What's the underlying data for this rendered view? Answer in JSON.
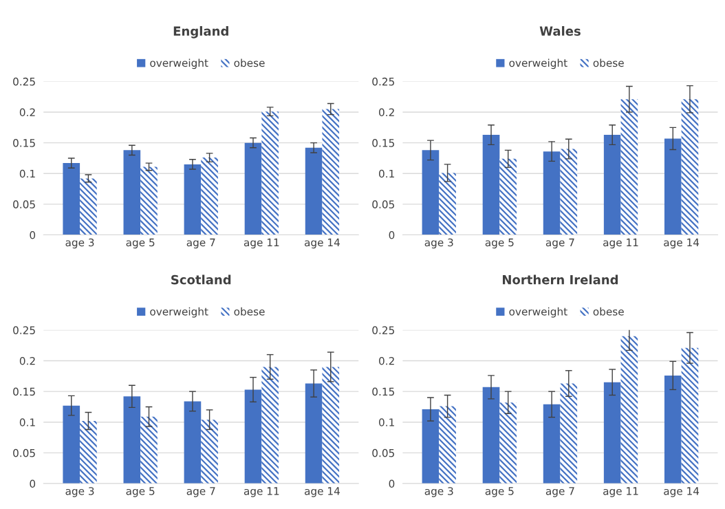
{
  "chart_data": [
    {
      "type": "bar",
      "title": "England",
      "categories": [
        "age 3",
        "age 5",
        "age 7",
        "age 11",
        "age 14"
      ],
      "ylim": [
        0,
        0.25
      ],
      "yticks": [
        0,
        0.05,
        0.1,
        0.15,
        0.2,
        0.25
      ],
      "grid": "y",
      "legend": "top",
      "series": [
        {
          "name": "overweight",
          "color": "#4472c4",
          "values": [
            0.117,
            0.138,
            0.115,
            0.15,
            0.142
          ],
          "errors": [
            0.008,
            0.008,
            0.008,
            0.008,
            0.008
          ]
        },
        {
          "name": "obese",
          "color": "#4472c4",
          "values": [
            0.092,
            0.111,
            0.126,
            0.201,
            0.205
          ],
          "errors": [
            0.006,
            0.006,
            0.007,
            0.007,
            0.009
          ]
        }
      ]
    },
    {
      "type": "bar",
      "title": "Wales",
      "categories": [
        "age 3",
        "age 5",
        "age 7",
        "age 11",
        "age 14"
      ],
      "ylim": [
        0,
        0.25
      ],
      "yticks": [
        0,
        0.05,
        0.1,
        0.15,
        0.2,
        0.25
      ],
      "grid": "y",
      "legend": "top",
      "series": [
        {
          "name": "overweight",
          "color": "#4472c4",
          "values": [
            0.138,
            0.163,
            0.136,
            0.163,
            0.157
          ],
          "errors": [
            0.016,
            0.016,
            0.016,
            0.016,
            0.018
          ]
        },
        {
          "name": "obese",
          "color": "#4472c4",
          "values": [
            0.101,
            0.124,
            0.14,
            0.221,
            0.221
          ],
          "errors": [
            0.014,
            0.014,
            0.016,
            0.021,
            0.022
          ]
        }
      ]
    },
    {
      "type": "bar",
      "title": "Scotland",
      "categories": [
        "age 3",
        "age 5",
        "age 7",
        "age 11",
        "age 14"
      ],
      "ylim": [
        0,
        0.25
      ],
      "yticks": [
        0,
        0.05,
        0.1,
        0.15,
        0.2,
        0.25
      ],
      "grid": "y",
      "legend": "top",
      "series": [
        {
          "name": "overweight",
          "color": "#4472c4",
          "values": [
            0.127,
            0.142,
            0.134,
            0.153,
            0.163
          ],
          "errors": [
            0.016,
            0.018,
            0.016,
            0.02,
            0.022
          ]
        },
        {
          "name": "obese",
          "color": "#4472c4",
          "values": [
            0.102,
            0.109,
            0.104,
            0.19,
            0.19
          ],
          "errors": [
            0.014,
            0.016,
            0.016,
            0.02,
            0.024
          ]
        }
      ]
    },
    {
      "type": "bar",
      "title": "Northern Ireland",
      "categories": [
        "age 3",
        "age 5",
        "age 7",
        "age 11",
        "age 14"
      ],
      "ylim": [
        0,
        0.25
      ],
      "yticks": [
        0,
        0.05,
        0.1,
        0.15,
        0.2,
        0.25
      ],
      "grid": "y",
      "legend": "top",
      "series": [
        {
          "name": "overweight",
          "color": "#4472c4",
          "values": [
            0.121,
            0.157,
            0.129,
            0.165,
            0.176
          ],
          "errors": [
            0.019,
            0.019,
            0.021,
            0.021,
            0.023
          ]
        },
        {
          "name": "obese",
          "color": "#4472c4",
          "values": [
            0.126,
            0.132,
            0.163,
            0.24,
            0.221
          ],
          "errors": [
            0.018,
            0.018,
            0.021,
            0.023,
            0.025
          ]
        }
      ]
    }
  ]
}
